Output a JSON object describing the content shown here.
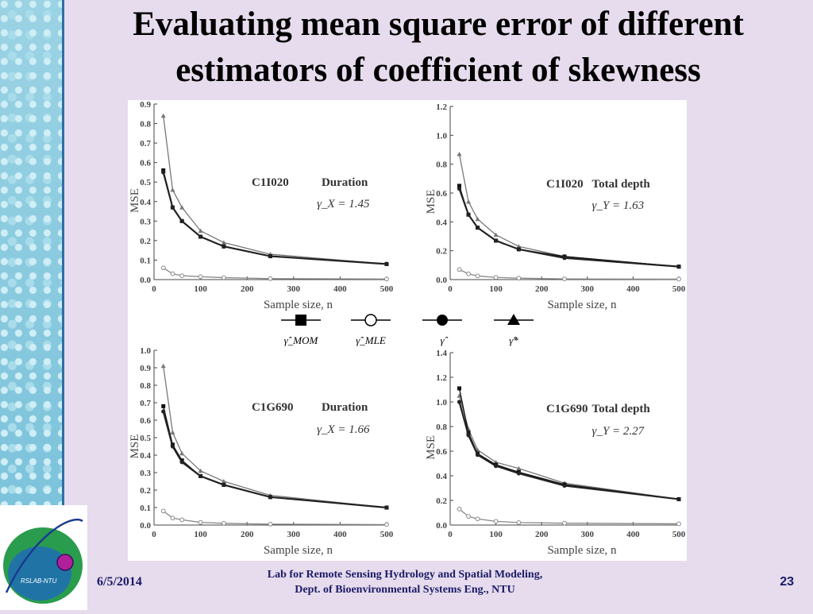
{
  "slide": {
    "title_line1": "Evaluating mean square error of different",
    "title_line2": "estimators of coefficient of skewness",
    "logo_text": "RSLAB-NTU",
    "footer_date": "6/5/2014",
    "footer_lab_line1": "Lab for Remote Sensing Hydrology and Spatial Modeling,",
    "footer_lab_line2": "Dept. of Bioenvironmental Systems Eng., NTU",
    "page_number": "23",
    "legend": [
      {
        "marker": "square",
        "label": "γ̂_MOM"
      },
      {
        "marker": "circle-open",
        "label": "γ̂_MLE"
      },
      {
        "marker": "circle",
        "label": "γ̂"
      },
      {
        "marker": "triangle",
        "label": "γ̂*"
      }
    ]
  },
  "chart_data": [
    {
      "type": "line",
      "station": "C1I020",
      "variable": "Duration",
      "gamma": "γ_X = 1.45",
      "xlabel": "Sample size, n",
      "ylabel": "MSE",
      "xlim": [
        0,
        500
      ],
      "ylim": [
        0,
        0.9
      ],
      "xticks": [
        0,
        100,
        200,
        300,
        400,
        500
      ],
      "yticks": [
        0.0,
        0.1,
        0.2,
        0.3,
        0.4,
        0.5,
        0.6,
        0.7,
        0.8,
        0.9
      ],
      "x": [
        20,
        40,
        60,
        100,
        150,
        250,
        500
      ],
      "series": [
        {
          "name": "γ̂_MOM",
          "marker": "square",
          "values": [
            0.56,
            0.37,
            0.3,
            0.22,
            0.17,
            0.12,
            0.08
          ]
        },
        {
          "name": "γ̂_MLE",
          "marker": "circle-open",
          "values": [
            0.06,
            0.03,
            0.02,
            0.015,
            0.01,
            0.005,
            0.003
          ]
        },
        {
          "name": "γ̂",
          "marker": "circle",
          "values": [
            0.55,
            0.37,
            0.3,
            0.22,
            0.17,
            0.12,
            0.08
          ]
        },
        {
          "name": "γ̂*",
          "marker": "triangle",
          "values": [
            0.84,
            0.46,
            0.37,
            0.25,
            0.19,
            0.13,
            0.08
          ]
        }
      ]
    },
    {
      "type": "line",
      "station": "C1I020",
      "variable": "Total depth",
      "gamma": "γ_Y = 1.63",
      "xlabel": "Sample size, n",
      "ylabel": "MSE",
      "xlim": [
        0,
        500
      ],
      "ylim": [
        0,
        1.2
      ],
      "xticks": [
        0,
        100,
        200,
        300,
        400,
        500
      ],
      "yticks": [
        0.0,
        0.2,
        0.4,
        0.6,
        0.8,
        1.0,
        1.2
      ],
      "x": [
        20,
        40,
        60,
        100,
        150,
        250,
        500
      ],
      "series": [
        {
          "name": "γ̂_MOM",
          "marker": "square",
          "values": [
            0.65,
            0.45,
            0.36,
            0.27,
            0.21,
            0.16,
            0.09
          ]
        },
        {
          "name": "γ̂_MLE",
          "marker": "circle-open",
          "values": [
            0.07,
            0.04,
            0.025,
            0.015,
            0.01,
            0.005,
            0.003
          ]
        },
        {
          "name": "γ̂",
          "marker": "circle",
          "values": [
            0.63,
            0.45,
            0.36,
            0.27,
            0.21,
            0.15,
            0.09
          ]
        },
        {
          "name": "γ̂*",
          "marker": "triangle",
          "values": [
            0.87,
            0.54,
            0.42,
            0.31,
            0.23,
            0.16,
            0.09
          ]
        }
      ]
    },
    {
      "type": "line",
      "station": "C1G690",
      "variable": "Duration",
      "gamma": "γ_X = 1.66",
      "xlabel": "Sample size, n",
      "ylabel": "MSE",
      "xlim": [
        0,
        500
      ],
      "ylim": [
        0,
        1.0
      ],
      "xticks": [
        0,
        100,
        200,
        300,
        400,
        500
      ],
      "yticks": [
        0.0,
        0.1,
        0.2,
        0.3,
        0.4,
        0.5,
        0.6,
        0.7,
        0.8,
        0.9,
        1.0
      ],
      "x": [
        20,
        40,
        60,
        100,
        150,
        250,
        500
      ],
      "series": [
        {
          "name": "γ̂_MOM",
          "marker": "square",
          "values": [
            0.68,
            0.46,
            0.37,
            0.28,
            0.23,
            0.16,
            0.1
          ]
        },
        {
          "name": "γ̂_MLE",
          "marker": "circle-open",
          "values": [
            0.08,
            0.04,
            0.03,
            0.015,
            0.01,
            0.005,
            0.003
          ]
        },
        {
          "name": "γ̂",
          "marker": "circle",
          "values": [
            0.65,
            0.45,
            0.36,
            0.28,
            0.23,
            0.16,
            0.1
          ]
        },
        {
          "name": "γ̂*",
          "marker": "triangle",
          "values": [
            0.91,
            0.53,
            0.41,
            0.31,
            0.25,
            0.17,
            0.1
          ]
        }
      ]
    },
    {
      "type": "line",
      "station": "C1G690",
      "variable": "Total depth",
      "gamma": "γ_Y = 2.27",
      "xlabel": "Sample size, n",
      "ylabel": "MSE",
      "xlim": [
        0,
        500
      ],
      "ylim": [
        0,
        1.4
      ],
      "xticks": [
        0,
        100,
        200,
        300,
        400,
        500
      ],
      "yticks": [
        0.0,
        0.2,
        0.4,
        0.6,
        0.8,
        1.0,
        1.2,
        1.4
      ],
      "x": [
        20,
        40,
        60,
        100,
        150,
        250,
        500
      ],
      "series": [
        {
          "name": "γ̂_MOM",
          "marker": "square",
          "values": [
            1.11,
            0.75,
            0.58,
            0.49,
            0.43,
            0.33,
            0.21
          ]
        },
        {
          "name": "γ̂_MLE",
          "marker": "circle-open",
          "values": [
            0.13,
            0.07,
            0.05,
            0.03,
            0.02,
            0.015,
            0.01
          ]
        },
        {
          "name": "γ̂",
          "marker": "circle",
          "values": [
            1.0,
            0.73,
            0.57,
            0.48,
            0.42,
            0.32,
            0.21
          ]
        },
        {
          "name": "γ̂*",
          "marker": "triangle",
          "values": [
            1.05,
            0.78,
            0.61,
            0.51,
            0.46,
            0.34,
            0.21
          ]
        }
      ]
    }
  ]
}
